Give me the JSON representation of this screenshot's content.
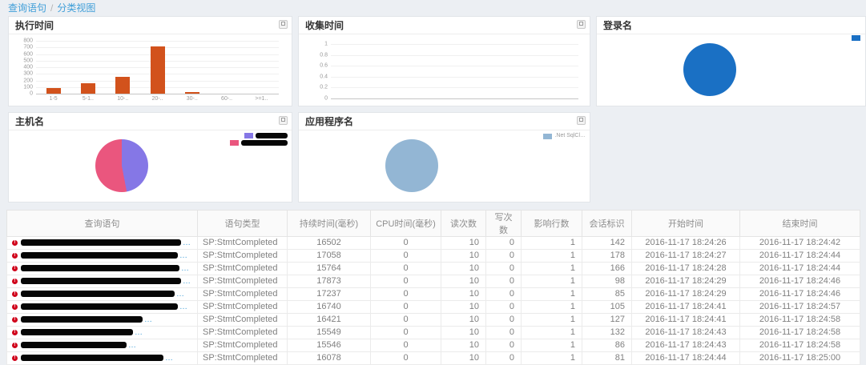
{
  "breadcrumb": {
    "items": [
      {
        "label": "查询语句"
      },
      {
        "label": "分类视图"
      }
    ],
    "separator": "/"
  },
  "panels": [
    {
      "title": "执行时间"
    },
    {
      "title": "收集时间"
    },
    {
      "title": "登录名"
    },
    {
      "title": "主机名"
    },
    {
      "title": "应用程序名"
    }
  ],
  "chart_data": [
    {
      "type": "bar",
      "title": "执行时间",
      "categories": [
        "1-5",
        "5-1..",
        "10-..",
        "20-..",
        "30-..",
        "60-..",
        ">=1.."
      ],
      "values": [
        85,
        155,
        260,
        715,
        20,
        0,
        0
      ],
      "xlabel": "",
      "ylabel": "",
      "ylim": [
        0,
        800
      ],
      "ytick_step": 100,
      "bar_color": "#d2521c",
      "grid": true,
      "legend_position": "none"
    },
    {
      "type": "line",
      "title": "收集时间",
      "categories": [],
      "series": [],
      "xlabel": "",
      "ylabel": "",
      "ylim": [
        0,
        1
      ],
      "yticks": [
        0,
        0.2,
        0.4,
        0.6,
        0.8,
        1
      ],
      "grid": true,
      "note": "no data plotted",
      "legend_position": "none"
    },
    {
      "type": "pie",
      "title": "登录名",
      "slices": [
        {
          "label": "",
          "redacted": false,
          "clipped": true,
          "value": 100,
          "color": "#1a70c4"
        }
      ],
      "legend_position": "top-right-clipped"
    },
    {
      "type": "pie",
      "title": "主机名",
      "slices": [
        {
          "label": "",
          "redacted": true,
          "value": 47,
          "color": "#8577e6"
        },
        {
          "label": "",
          "redacted": true,
          "value": 53,
          "color": "#ea567e"
        }
      ],
      "legend_position": "top-right"
    },
    {
      "type": "pie",
      "title": "应用程序名",
      "slices": [
        {
          "label": ".Net SqlCl…",
          "redacted": false,
          "value": 100,
          "color": "#93b6d4"
        }
      ],
      "legend_position": "top-right"
    }
  ],
  "table": {
    "columns": [
      "查询语句",
      "语句类型",
      "持续时间(毫秒)",
      "CPU时间(毫秒)",
      "读次数",
      "写次数",
      "影响行数",
      "会话标识",
      "开始时间",
      "结束时间"
    ],
    "query_redacted_tail": "…",
    "rows": [
      {
        "query_redacted": true,
        "type": "SP:StmtCompleted",
        "duration": "16502",
        "cpu": "0",
        "reads": "10",
        "writes": "0",
        "affected": "1",
        "session": "142",
        "start": "2016-11-17 18:24:26",
        "end": "2016-11-17 18:24:42"
      },
      {
        "query_redacted": true,
        "type": "SP:StmtCompleted",
        "duration": "17058",
        "cpu": "0",
        "reads": "10",
        "writes": "0",
        "affected": "1",
        "session": "178",
        "start": "2016-11-17 18:24:27",
        "end": "2016-11-17 18:24:44"
      },
      {
        "query_redacted": true,
        "type": "SP:StmtCompleted",
        "duration": "15764",
        "cpu": "0",
        "reads": "10",
        "writes": "0",
        "affected": "1",
        "session": "166",
        "start": "2016-11-17 18:24:28",
        "end": "2016-11-17 18:24:44"
      },
      {
        "query_redacted": true,
        "type": "SP:StmtCompleted",
        "duration": "17873",
        "cpu": "0",
        "reads": "10",
        "writes": "0",
        "affected": "1",
        "session": "98",
        "start": "2016-11-17 18:24:29",
        "end": "2016-11-17 18:24:46"
      },
      {
        "query_redacted": true,
        "type": "SP:StmtCompleted",
        "duration": "17237",
        "cpu": "0",
        "reads": "10",
        "writes": "0",
        "affected": "1",
        "session": "85",
        "start": "2016-11-17 18:24:29",
        "end": "2016-11-17 18:24:46"
      },
      {
        "query_redacted": true,
        "type": "SP:StmtCompleted",
        "duration": "16740",
        "cpu": "0",
        "reads": "10",
        "writes": "0",
        "affected": "1",
        "session": "105",
        "start": "2016-11-17 18:24:41",
        "end": "2016-11-17 18:24:57"
      },
      {
        "query_redacted": true,
        "type": "SP:StmtCompleted",
        "duration": "16421",
        "cpu": "0",
        "reads": "10",
        "writes": "0",
        "affected": "1",
        "session": "127",
        "start": "2016-11-17 18:24:41",
        "end": "2016-11-17 18:24:58"
      },
      {
        "query_redacted": true,
        "type": "SP:StmtCompleted",
        "duration": "15549",
        "cpu": "0",
        "reads": "10",
        "writes": "0",
        "affected": "1",
        "session": "132",
        "start": "2016-11-17 18:24:43",
        "end": "2016-11-17 18:24:58"
      },
      {
        "query_redacted": true,
        "type": "SP:StmtCompleted",
        "duration": "15546",
        "cpu": "0",
        "reads": "10",
        "writes": "0",
        "affected": "1",
        "session": "86",
        "start": "2016-11-17 18:24:43",
        "end": "2016-11-17 18:24:58"
      },
      {
        "query_redacted": true,
        "type": "SP:StmtCompleted",
        "duration": "16078",
        "cpu": "0",
        "reads": "10",
        "writes": "0",
        "affected": "1",
        "session": "81",
        "start": "2016-11-17 18:24:44",
        "end": "2016-11-17 18:25:00"
      }
    ]
  },
  "colors": {
    "link_blue": "#3f9ed8",
    "bar_orange": "#d2521c",
    "pie_blue": "#1a70c4",
    "pie_purple": "#8577e6",
    "pie_pink": "#ea567e",
    "pie_lightblue": "#93b6d4",
    "error_red": "#d0021b",
    "page_background": "#ecEFf3"
  }
}
